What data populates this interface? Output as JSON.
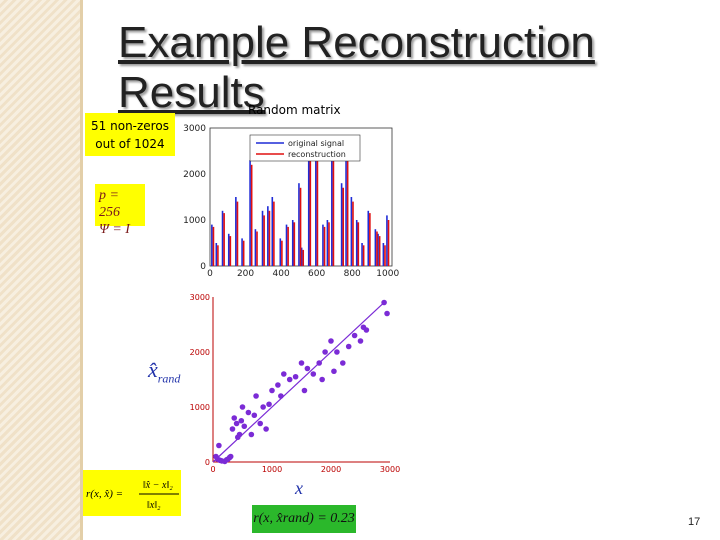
{
  "title": {
    "line1": "Example Reconstruction",
    "line2": "Results"
  },
  "subtitle": "Random matrix",
  "nonzeros_label": {
    "line1": "51 non-zeros",
    "line2": "out of 1024"
  },
  "params": {
    "p": "p = 256",
    "psi": "Ψ = I"
  },
  "formula_r": {
    "lhs": "r(x, x̂) =",
    "num": "‖x̂ − x‖₂",
    "den": "‖x‖₂"
  },
  "result_r": "r(x, x̂rand) = 0.23",
  "yaxis_symbol": {
    "main": "x̂",
    "sub": "rand"
  },
  "xaxis_symbol": "x",
  "page_number": "17",
  "colors": {
    "original": "#1f2bd6",
    "reconstruction": "#e01010",
    "scatter": "#7b2bd6",
    "highlight_yellow": "#ffff00",
    "highlight_green": "#2bb82b"
  },
  "chart_data": [
    {
      "type": "bar",
      "xlim": [
        0,
        1024
      ],
      "ylim": [
        0,
        3000
      ],
      "xticks": [
        "0",
        "200",
        "400",
        "600",
        "800",
        "1000"
      ],
      "yticks": [
        "0",
        "1000",
        "2000",
        "3000"
      ],
      "legend_position": "top-right",
      "series": [
        {
          "name": "original signal",
          "x": [
            15,
            40,
            75,
            110,
            150,
            185,
            230,
            260,
            300,
            330,
            355,
            400,
            435,
            470,
            505,
            520,
            560,
            600,
            640,
            665,
            690,
            745,
            770,
            800,
            830,
            860,
            895,
            935,
            950,
            980,
            1000
          ],
          "values": [
            900,
            500,
            1200,
            700,
            1500,
            600,
            2300,
            800,
            1200,
            1300,
            1500,
            600,
            900,
            1000,
            1800,
            400,
            2700,
            2800,
            900,
            1000,
            2500,
            1800,
            2600,
            1500,
            1000,
            500,
            1200,
            800,
            700,
            500,
            1100
          ]
        },
        {
          "name": "reconstruction",
          "x": [
            15,
            40,
            75,
            110,
            150,
            185,
            230,
            260,
            300,
            330,
            355,
            400,
            435,
            470,
            505,
            520,
            560,
            600,
            640,
            665,
            690,
            745,
            770,
            800,
            830,
            860,
            895,
            935,
            950,
            980,
            1000
          ],
          "values": [
            850,
            450,
            1150,
            650,
            1400,
            550,
            2200,
            750,
            1100,
            1200,
            1400,
            550,
            850,
            950,
            1700,
            350,
            2600,
            2650,
            850,
            950,
            2350,
            1700,
            2450,
            1400,
            950,
            450,
            1150,
            750,
            650,
            450,
            1000
          ]
        }
      ]
    },
    {
      "type": "scatter",
      "xlim": [
        0,
        3000
      ],
      "ylim": [
        0,
        3000
      ],
      "xticks": [
        "0",
        "1000",
        "2000",
        "3000"
      ],
      "yticks": [
        "0",
        "1000",
        "2000",
        "3000"
      ],
      "line": {
        "x": [
          0,
          2900
        ],
        "y": [
          0,
          2900
        ]
      },
      "series": [
        {
          "x": [
            50,
            80,
            100,
            120,
            150,
            200,
            230,
            250,
            280,
            300,
            330,
            360,
            400,
            420,
            450,
            480,
            500,
            530,
            600,
            650,
            700,
            730,
            800,
            850,
            900,
            950,
            1000,
            1100,
            1150,
            1200,
            1300,
            1400,
            1500,
            1550,
            1600,
            1700,
            1800,
            1850,
            1900,
            2000,
            2050,
            2100,
            2200,
            2300,
            2400,
            2500,
            2550,
            2600,
            2900,
            2950
          ],
          "y": [
            100,
            50,
            300,
            30,
            20,
            10,
            40,
            50,
            80,
            100,
            600,
            800,
            700,
            450,
            500,
            750,
            1000,
            650,
            900,
            500,
            850,
            1200,
            700,
            1000,
            600,
            1050,
            1300,
            1400,
            1200,
            1600,
            1500,
            1550,
            1800,
            1300,
            1700,
            1600,
            1800,
            1500,
            2000,
            2200,
            1650,
            2000,
            1800,
            2100,
            2300,
            2200,
            2450,
            2400,
            2900,
            2700
          ]
        }
      ]
    }
  ]
}
